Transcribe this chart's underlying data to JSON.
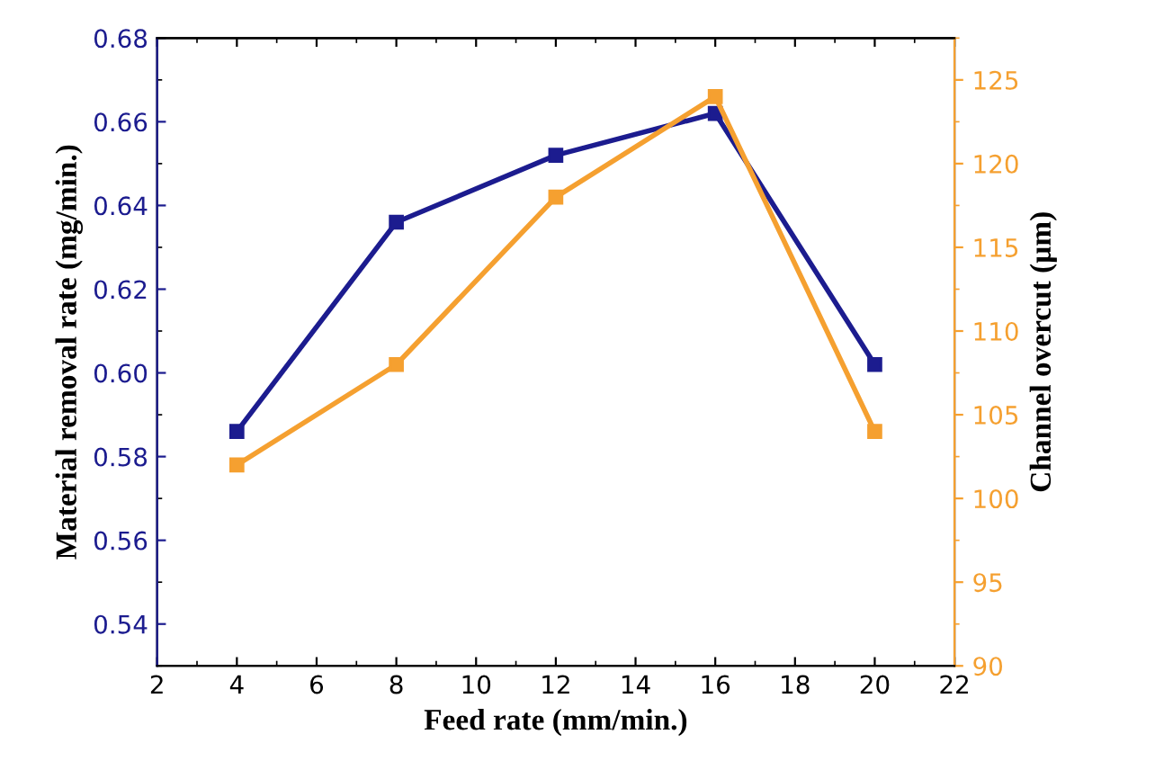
{
  "chart_data": {
    "type": "line",
    "xlabel": "Feed rate (mm/min.)",
    "ylabel": "Material removal rate (mg/min.)",
    "y2label": "Channel overcut (µm)",
    "x": [
      4,
      8,
      12,
      16,
      20
    ],
    "series": [
      {
        "color": "#1c1c8f",
        "values": [
          0.586,
          0.636,
          0.652,
          0.662,
          0.602
        ]
      },
      {
        "color": "#f5a030",
        "values": [
          102,
          108,
          118,
          124,
          104
        ],
        "axis": "y2"
      }
    ],
    "xlim": [
      2,
      22
    ],
    "xticks": [
      2,
      4,
      6,
      8,
      10,
      12,
      14,
      16,
      18,
      20,
      22
    ],
    "ylim": [
      0.53,
      0.68
    ],
    "yticks": [
      {
        "value": 0.54,
        "label": "0.54"
      },
      {
        "value": 0.56,
        "label": "0.56"
      },
      {
        "value": 0.58,
        "label": "0.58"
      },
      {
        "value": 0.6,
        "label": "0.60"
      },
      {
        "value": 0.62,
        "label": "0.62"
      },
      {
        "value": 0.64,
        "label": "0.64"
      },
      {
        "value": 0.66,
        "label": "0.66"
      },
      {
        "value": 0.68,
        "label": "0.68"
      }
    ],
    "y2lim": [
      90,
      127.5
    ],
    "y2ticks": [
      90,
      95,
      100,
      105,
      110,
      115,
      120,
      125
    ],
    "marker": "square",
    "line_style": "solid",
    "grid": false,
    "legend": false
  }
}
